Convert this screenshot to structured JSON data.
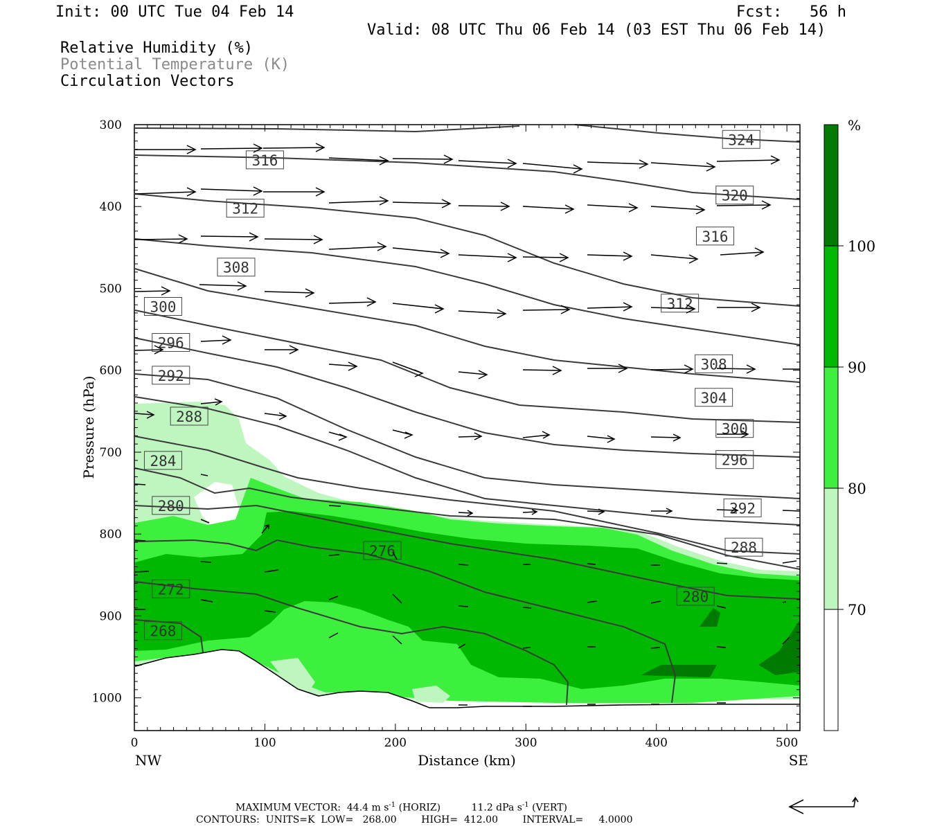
{
  "header": {
    "init": "Init: 00 UTC Tue 04 Feb 14",
    "fcst": "Fcst:   56 h",
    "valid": "Valid: 08 UTC Thu 06 Feb 14 (03 EST Thu 06 Feb 14)"
  },
  "legend": {
    "fields": [
      "Relative Humidity (%)",
      "Potential Temperature (K)",
      "Circulation Vectors"
    ]
  },
  "colorbar": {
    "unit": "%",
    "levels": [
      "70",
      "80",
      "90",
      "100"
    ],
    "colors": [
      "#ffffff",
      "#bff5bf",
      "#3ef03e",
      "#00b800",
      "#007a00"
    ]
  },
  "footer": {
    "max_vector": "MAXIMUM VECTOR:  44.4 m s",
    "max_vector_horiz": "(HORIZ)",
    "max_vector_vert_value": "11.2 dPa s",
    "max_vector_vert": "(VERT)",
    "exp": "-1",
    "contours": "CONTOURS:  UNITS=K  LOW=   268.00        HIGH=  412.00        INTERVAL=     4.0000"
  },
  "chart_data": {
    "type": "cross-section",
    "x_axis": {
      "label": "Distance (km)",
      "range": [
        0,
        510
      ],
      "ticks": [
        0,
        100,
        200,
        300,
        400,
        500
      ],
      "left_end": "NW",
      "right_end": "SE"
    },
    "y_axis": {
      "label": "Pressure (hPa)",
      "range": [
        300,
        1040
      ],
      "ticks": [
        300,
        400,
        500,
        600,
        700,
        800,
        900,
        1000
      ],
      "reversed": true
    },
    "theta_labels": [
      {
        "value": "324",
        "x": 465,
        "p": 318
      },
      {
        "value": "320",
        "x": 460,
        "p": 386
      },
      {
        "value": "316",
        "x": 100,
        "p": 343
      },
      {
        "value": "316",
        "x": 445,
        "p": 436
      },
      {
        "value": "312",
        "x": 85,
        "p": 402
      },
      {
        "value": "312",
        "x": 418,
        "p": 518
      },
      {
        "value": "308",
        "x": 78,
        "p": 474
      },
      {
        "value": "308",
        "x": 444,
        "p": 592
      },
      {
        "value": "304",
        "x": 444,
        "p": 633
      },
      {
        "value": "300",
        "x": 22,
        "p": 522
      },
      {
        "value": "300",
        "x": 460,
        "p": 671
      },
      {
        "value": "296",
        "x": 28,
        "p": 566
      },
      {
        "value": "296",
        "x": 460,
        "p": 709
      },
      {
        "value": "292",
        "x": 28,
        "p": 606
      },
      {
        "value": "292",
        "x": 466,
        "p": 768
      },
      {
        "value": "288",
        "x": 42,
        "p": 656
      },
      {
        "value": "288",
        "x": 467,
        "p": 816
      },
      {
        "value": "284",
        "x": 22,
        "p": 710
      },
      {
        "value": "280",
        "x": 28,
        "p": 765
      },
      {
        "value": "280",
        "x": 430,
        "p": 876
      },
      {
        "value": "276",
        "x": 190,
        "p": 820
      },
      {
        "value": "272",
        "x": 28,
        "p": 867
      },
      {
        "value": "268",
        "x": 22,
        "p": 918
      }
    ]
  }
}
